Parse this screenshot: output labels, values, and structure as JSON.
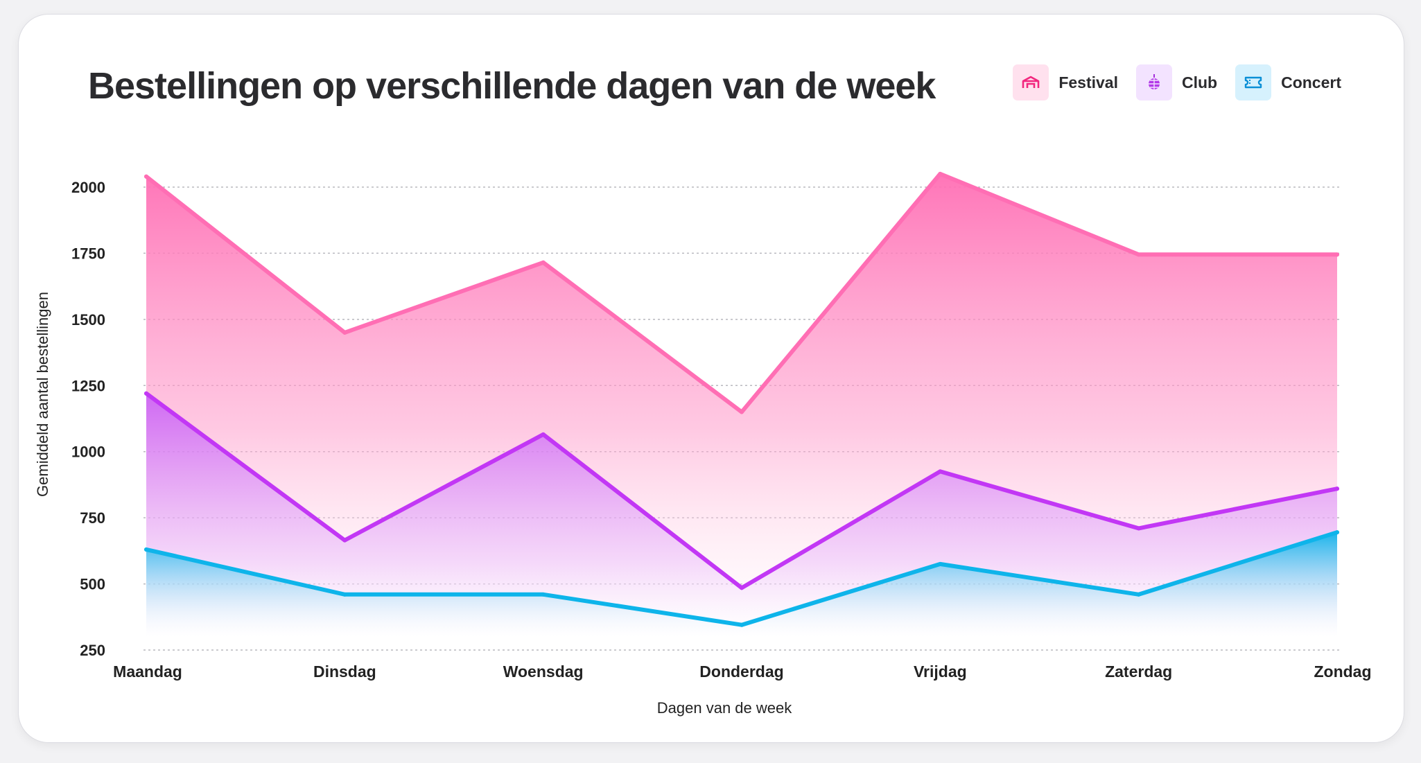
{
  "chart_data": {
    "type": "area",
    "title": "Bestellingen op verschillende dagen van de week",
    "xlabel": "Dagen van de week",
    "ylabel": "Gemiddeld aantal bestellingen",
    "categories": [
      "Maandag",
      "Dinsdag",
      "Woensdag",
      "Donderdag",
      "Vrijdag",
      "Zaterdag",
      "Zondag"
    ],
    "ylim": [
      250,
      2000
    ],
    "yticks": [
      2000,
      1750,
      1500,
      1250,
      1000,
      750,
      500,
      250
    ],
    "grid": true,
    "legend_position": "top-right",
    "series": [
      {
        "name": "Festival",
        "values": [
          2040,
          1450,
          1715,
          1150,
          2050,
          1745,
          1745
        ],
        "color": "#ff6eb4",
        "icon": "festival-icon"
      },
      {
        "name": "Club",
        "values": [
          1220,
          665,
          1065,
          485,
          925,
          710,
          860
        ],
        "color": "#c237f5",
        "icon": "disco-ball-icon"
      },
      {
        "name": "Concert",
        "values": [
          630,
          460,
          460,
          345,
          575,
          460,
          695
        ],
        "color": "#0eb4ea",
        "icon": "ticket-icon"
      }
    ]
  }
}
